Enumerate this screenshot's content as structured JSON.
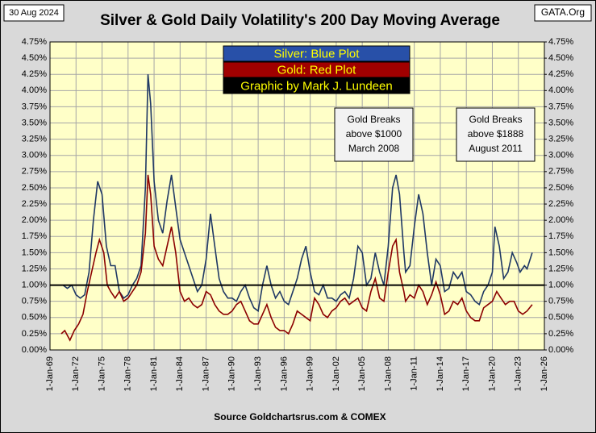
{
  "chart_data": {
    "type": "line",
    "title": "Silver & Gold Daily Volatility's 200 Day Moving Average",
    "date": "30 Aug 2024",
    "site": "GATA.Org",
    "credit": "Graphic by Mark J. Lundeen",
    "source": "Source Goldchartsrus.com  & COMEX",
    "annotations": [
      [
        "Gold Breaks",
        "above $1000",
        "March 2008"
      ],
      [
        "Gold Breaks",
        "above $1888",
        "August 2011"
      ]
    ],
    "reference_line": 1,
    "grid": true,
    "xlim": [
      1969,
      2026
    ],
    "xticks": [
      {
        "value": 1969,
        "label": "1-Jan-69"
      },
      {
        "value": 1972,
        "label": "1-Jan-72"
      },
      {
        "value": 1975,
        "label": "1-Jan-75"
      },
      {
        "value": 1978,
        "label": "1-Jan-78"
      },
      {
        "value": 1981,
        "label": "1-Jan-81"
      },
      {
        "value": 1984,
        "label": "1-Jan-84"
      },
      {
        "value": 1987,
        "label": "1-Jan-87"
      },
      {
        "value": 1990,
        "label": "1-Jan-90"
      },
      {
        "value": 1993,
        "label": "1-Jan-93"
      },
      {
        "value": 1996,
        "label": "1-Jan-96"
      },
      {
        "value": 1999,
        "label": "1-Jan-99"
      },
      {
        "value": 2002,
        "label": "1-Jan-02"
      },
      {
        "value": 2005,
        "label": "1-Jan-05"
      },
      {
        "value": 2008,
        "label": "1-Jan-08"
      },
      {
        "value": 2011,
        "label": "1-Jan-11"
      },
      {
        "value": 2014,
        "label": "1-Jan-14"
      },
      {
        "value": 2017,
        "label": "1-Jan-17"
      },
      {
        "value": 2020,
        "label": "1-Jan-20"
      },
      {
        "value": 2023,
        "label": "1-Jan-23"
      },
      {
        "value": 2026,
        "label": "1-Jan-26"
      }
    ],
    "ylim": [
      0,
      4.75
    ],
    "yticks": [
      {
        "value": 0,
        "label": "0.00%"
      },
      {
        "value": 0.25,
        "label": "0.25%"
      },
      {
        "value": 0.5,
        "label": "0.50%"
      },
      {
        "value": 0.75,
        "label": "0.75%"
      },
      {
        "value": 1,
        "label": "1.00%"
      },
      {
        "value": 1.25,
        "label": "1.25%"
      },
      {
        "value": 1.5,
        "label": "1.50%"
      },
      {
        "value": 1.75,
        "label": "1.75%"
      },
      {
        "value": 2,
        "label": "2.00%"
      },
      {
        "value": 2.25,
        "label": "2.25%"
      },
      {
        "value": 2.5,
        "label": "2.50%"
      },
      {
        "value": 2.75,
        "label": "2.75%"
      },
      {
        "value": 3,
        "label": "3.00%"
      },
      {
        "value": 3.25,
        "label": "3.25%"
      },
      {
        "value": 3.5,
        "label": "3.50%"
      },
      {
        "value": 3.75,
        "label": "3.75%"
      },
      {
        "value": 4,
        "label": "4.00%"
      },
      {
        "value": 4.25,
        "label": "4.25%"
      },
      {
        "value": 4.5,
        "label": "4.50%"
      },
      {
        "value": 4.75,
        "label": "4.75%"
      }
    ],
    "y2lim": [
      0,
      4.75
    ],
    "y2ticks": [
      {
        "value": 0,
        "label": "0.00%"
      },
      {
        "value": 0.25,
        "label": "0.25%"
      },
      {
        "value": 0.5,
        "label": "0.50%"
      },
      {
        "value": 0.75,
        "label": "0.75%"
      },
      {
        "value": 1,
        "label": "1.00%"
      },
      {
        "value": 1.25,
        "label": "1.25%"
      },
      {
        "value": 1.5,
        "label": "1.50%"
      },
      {
        "value": 1.75,
        "label": "1.75%"
      },
      {
        "value": 2,
        "label": "2.00%"
      },
      {
        "value": 2.25,
        "label": "2.25%"
      },
      {
        "value": 2.5,
        "label": "2.50%"
      },
      {
        "value": 2.75,
        "label": "2.75%"
      },
      {
        "value": 3,
        "label": "3.00%"
      },
      {
        "value": 3.25,
        "label": "3.25%"
      },
      {
        "value": 3.5,
        "label": "3.50%"
      },
      {
        "value": 3.75,
        "label": "3.75%"
      },
      {
        "value": 4,
        "label": "4.00%"
      },
      {
        "value": 4.25,
        "label": "4.25%"
      },
      {
        "value": 4.5,
        "label": "4.50%"
      },
      {
        "value": 4.75,
        "label": "4.75%"
      }
    ],
    "series": [
      {
        "name": "Silver: Blue Plot",
        "color": "#1f3864",
        "legend_color": "#2850a8",
        "x": [
          1970.5,
          1971,
          1971.5,
          1972,
          1972.5,
          1973,
          1973.5,
          1974,
          1974.5,
          1975,
          1975.5,
          1976,
          1976.5,
          1977,
          1977.5,
          1978,
          1978.5,
          1979,
          1979.5,
          1980,
          1980.3,
          1980.6,
          1981,
          1981.5,
          1982,
          1982.5,
          1983,
          1983.5,
          1984,
          1984.5,
          1985,
          1985.5,
          1986,
          1986.5,
          1987,
          1987.5,
          1988,
          1988.5,
          1989,
          1989.5,
          1990,
          1990.5,
          1991,
          1991.5,
          1992,
          1992.5,
          1993,
          1993.5,
          1994,
          1994.5,
          1995,
          1995.5,
          1996,
          1996.5,
          1997,
          1997.5,
          1998,
          1998.5,
          1999,
          1999.5,
          2000,
          2000.5,
          2001,
          2001.5,
          2002,
          2002.5,
          2003,
          2003.5,
          2004,
          2004.5,
          2005,
          2005.5,
          2006,
          2006.5,
          2007,
          2007.5,
          2008,
          2008.5,
          2008.9,
          2009.3,
          2009.8,
          2010,
          2010.5,
          2011,
          2011.5,
          2012,
          2012.5,
          2013,
          2013.5,
          2014,
          2014.5,
          2015,
          2015.5,
          2016,
          2016.5,
          2017,
          2017.5,
          2018,
          2018.5,
          2019,
          2019.5,
          2020,
          2020.3,
          2020.8,
          2021.3,
          2021.8,
          2022.3,
          2022.8,
          2023.2,
          2023.7,
          2024,
          2024.6
        ],
        "values": [
          1.0,
          0.95,
          1.0,
          0.85,
          0.8,
          0.85,
          1.2,
          2.0,
          2.6,
          2.4,
          1.6,
          1.3,
          1.3,
          0.9,
          0.8,
          0.85,
          1.0,
          1.1,
          1.3,
          2.5,
          4.25,
          3.8,
          2.6,
          2.0,
          1.8,
          2.3,
          2.7,
          2.2,
          1.7,
          1.5,
          1.3,
          1.1,
          0.9,
          1.0,
          1.4,
          2.1,
          1.6,
          1.1,
          0.9,
          0.8,
          0.8,
          0.75,
          0.9,
          1.0,
          0.8,
          0.65,
          0.6,
          1.0,
          1.3,
          1.0,
          0.8,
          0.9,
          0.75,
          0.7,
          0.9,
          1.1,
          1.4,
          1.6,
          1.2,
          0.9,
          0.85,
          1.0,
          0.8,
          0.8,
          0.75,
          0.85,
          0.9,
          0.8,
          1.1,
          1.6,
          1.5,
          1.0,
          1.1,
          1.5,
          1.2,
          1.0,
          1.6,
          2.5,
          2.7,
          2.4,
          1.5,
          1.2,
          1.3,
          1.9,
          2.4,
          2.1,
          1.5,
          1.0,
          1.4,
          1.3,
          0.9,
          0.95,
          1.2,
          1.1,
          1.2,
          0.9,
          0.85,
          0.75,
          0.7,
          0.9,
          1.0,
          1.2,
          1.9,
          1.6,
          1.1,
          1.2,
          1.5,
          1.35,
          1.2,
          1.3,
          1.25,
          1.5
        ]
      },
      {
        "name": "Gold: Red Plot",
        "color": "#8b0000",
        "legend_color": "#a00000",
        "x": [
          1970.3,
          1970.7,
          1971.3,
          1971.8,
          1972.3,
          1972.8,
          1973.3,
          1973.8,
          1974.3,
          1974.7,
          1975.2,
          1975.6,
          1976,
          1976.5,
          1977,
          1977.5,
          1978,
          1978.5,
          1979,
          1979.5,
          1980,
          1980.3,
          1980.6,
          1981,
          1981.5,
          1982,
          1982.5,
          1983,
          1983.5,
          1984,
          1984.5,
          1985,
          1985.5,
          1986,
          1986.5,
          1987,
          1987.5,
          1988,
          1988.5,
          1989,
          1989.5,
          1990,
          1990.5,
          1991,
          1991.5,
          1992,
          1992.5,
          1993,
          1993.5,
          1994,
          1994.5,
          1995,
          1995.5,
          1996,
          1996.5,
          1997,
          1997.5,
          1998,
          1998.5,
          1999,
          1999.5,
          2000,
          2000.5,
          2001,
          2001.5,
          2002,
          2002.5,
          2003,
          2003.5,
          2004,
          2004.5,
          2005,
          2005.5,
          2006,
          2006.5,
          2007,
          2007.5,
          2008,
          2008.5,
          2008.9,
          2009.3,
          2009.8,
          2010,
          2010.5,
          2011,
          2011.5,
          2012,
          2012.5,
          2013,
          2013.5,
          2014,
          2014.5,
          2015,
          2015.5,
          2016,
          2016.5,
          2017,
          2017.5,
          2018,
          2018.5,
          2019,
          2019.5,
          2020,
          2020.5,
          2021,
          2021.5,
          2022,
          2022.5,
          2023,
          2023.5,
          2024,
          2024.6
        ],
        "values": [
          0.25,
          0.3,
          0.15,
          0.3,
          0.4,
          0.55,
          0.9,
          1.2,
          1.5,
          1.7,
          1.5,
          1.0,
          0.9,
          0.8,
          0.9,
          0.75,
          0.8,
          0.9,
          1.0,
          1.2,
          1.8,
          2.7,
          2.4,
          1.6,
          1.4,
          1.3,
          1.6,
          1.9,
          1.5,
          0.9,
          0.75,
          0.8,
          0.7,
          0.65,
          0.7,
          0.9,
          0.85,
          0.7,
          0.6,
          0.55,
          0.55,
          0.6,
          0.7,
          0.75,
          0.6,
          0.45,
          0.4,
          0.4,
          0.55,
          0.7,
          0.5,
          0.35,
          0.3,
          0.3,
          0.25,
          0.4,
          0.6,
          0.55,
          0.5,
          0.45,
          0.8,
          0.7,
          0.55,
          0.5,
          0.6,
          0.65,
          0.75,
          0.8,
          0.7,
          0.75,
          0.8,
          0.65,
          0.6,
          0.9,
          1.1,
          0.8,
          0.75,
          1.2,
          1.6,
          1.7,
          1.2,
          0.9,
          0.75,
          0.85,
          0.8,
          1.0,
          0.9,
          0.7,
          0.85,
          1.05,
          0.85,
          0.55,
          0.6,
          0.75,
          0.7,
          0.8,
          0.6,
          0.5,
          0.45,
          0.45,
          0.65,
          0.7,
          0.75,
          0.9,
          0.8,
          0.7,
          0.75,
          0.75,
          0.6,
          0.55,
          0.6,
          0.7
        ]
      }
    ]
  }
}
